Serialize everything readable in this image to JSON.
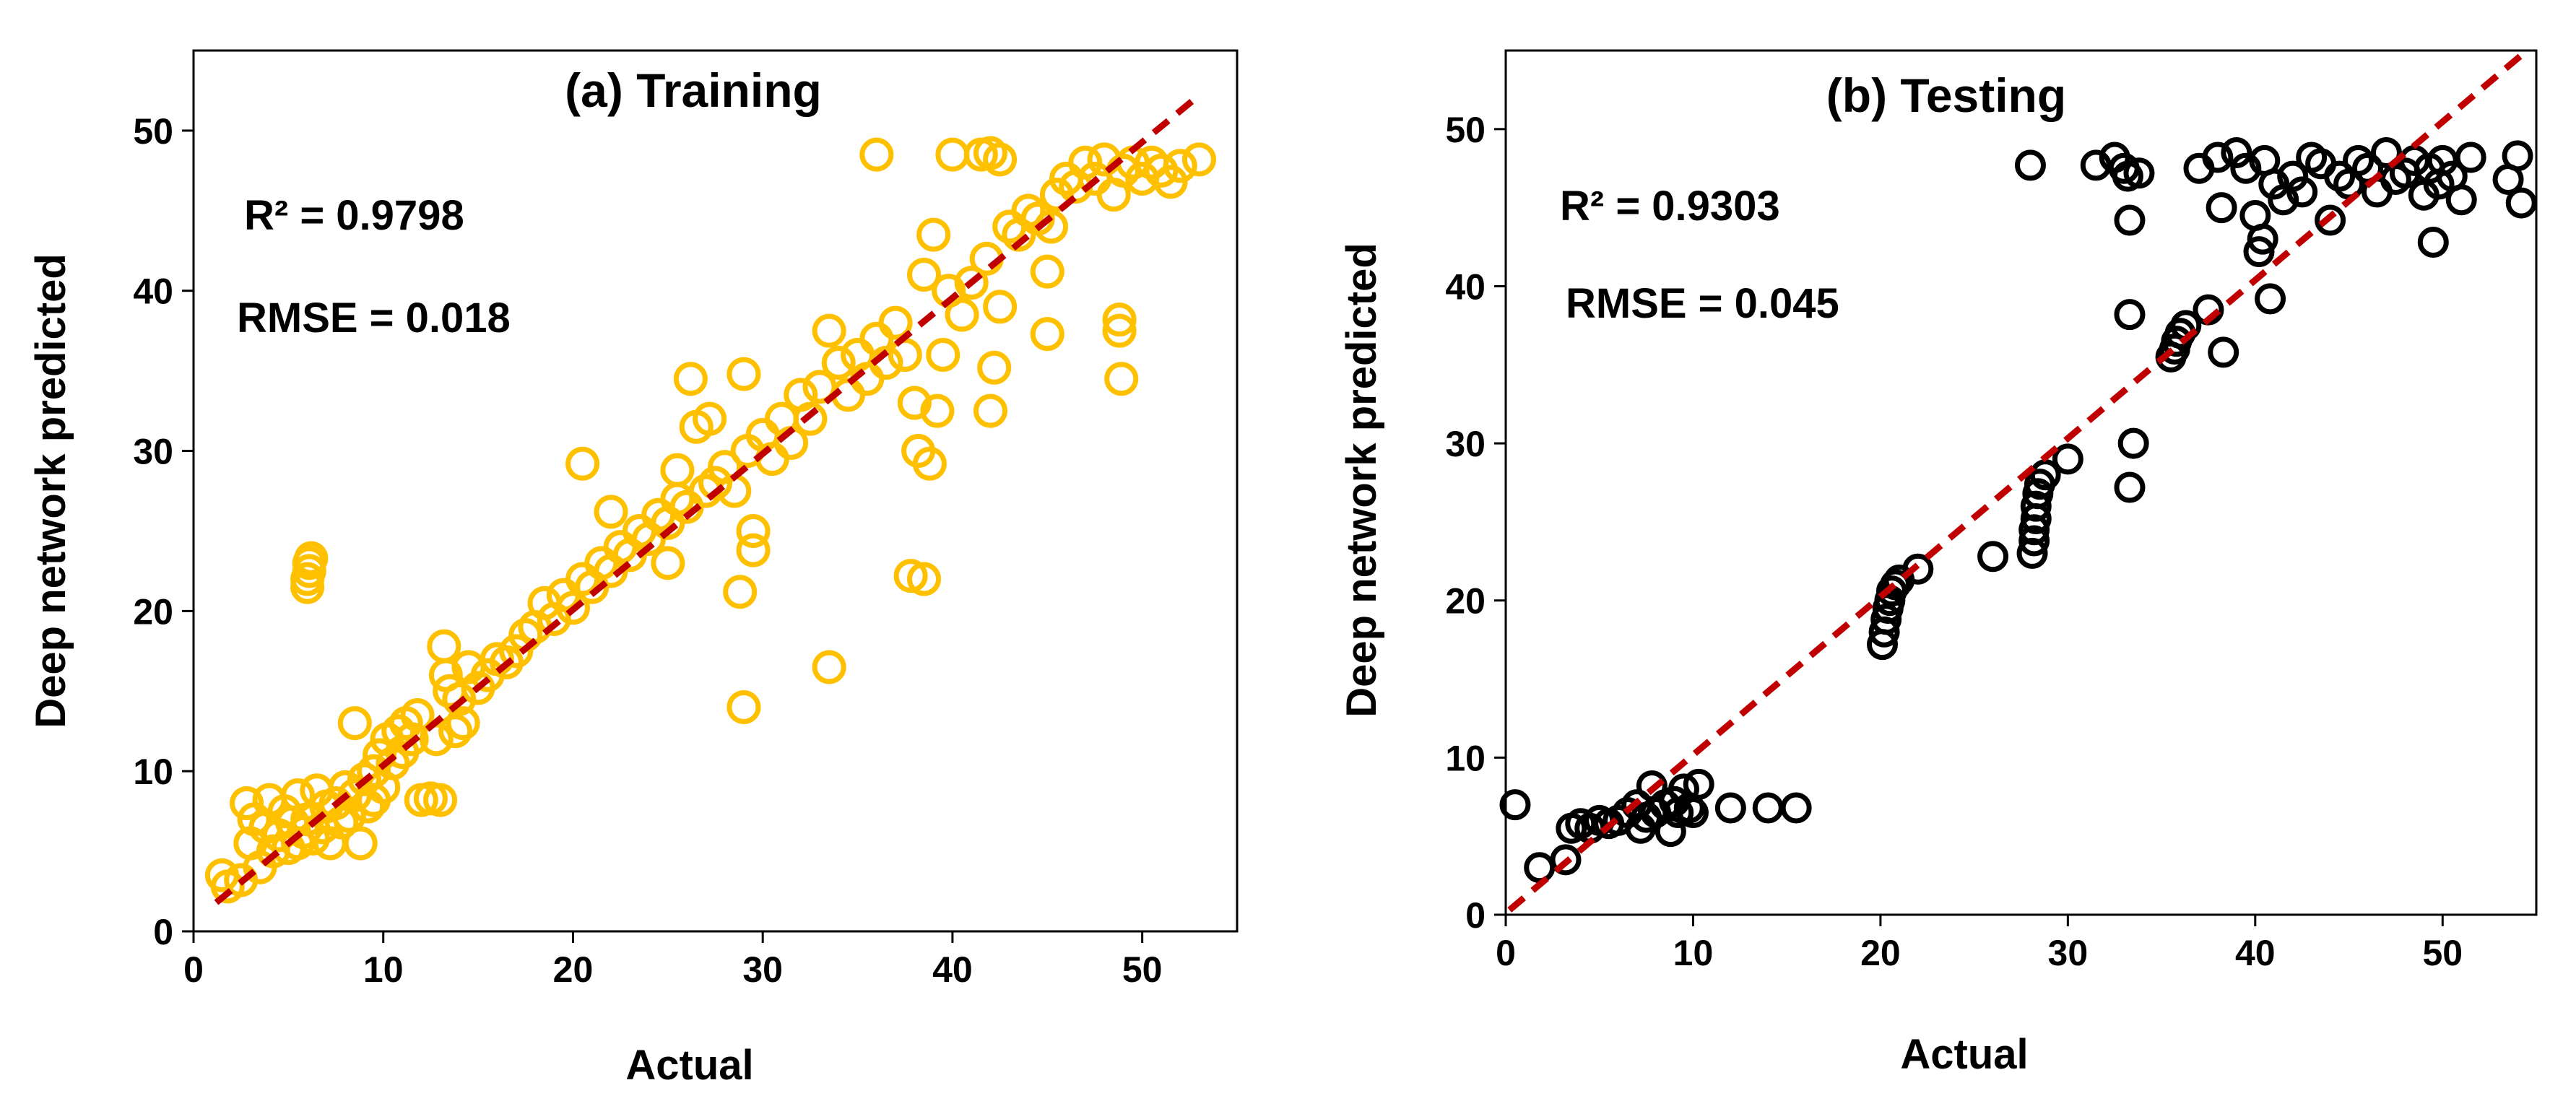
{
  "chart_data": [
    {
      "type": "scatter",
      "title": "(a) Training",
      "xlabel": "Actual",
      "ylabel": "Deep network predicted",
      "xlim": [
        0,
        55
      ],
      "ylim": [
        0,
        55
      ],
      "xticks": [
        0,
        10,
        20,
        30,
        40,
        50
      ],
      "yticks": [
        0,
        10,
        20,
        30,
        40,
        50
      ],
      "annotations": [
        "R² = 0.9798",
        "RMSE = 0.018"
      ],
      "marker_color": "#FFC000",
      "fit_line": {
        "style": "dashed",
        "color": "#C00000",
        "x": [
          1.2,
          53
        ],
        "y": [
          1.8,
          52.2
        ]
      },
      "series": [
        {
          "name": "Training",
          "points": [
            [
              1.5,
              3.5
            ],
            [
              1.8,
              2.8
            ],
            [
              2.5,
              3.2
            ],
            [
              2.8,
              8.0
            ],
            [
              3.0,
              5.5
            ],
            [
              3.2,
              7.0
            ],
            [
              3.5,
              4.0
            ],
            [
              3.8,
              6.5
            ],
            [
              4.0,
              8.2
            ],
            [
              4.2,
              5.0
            ],
            [
              4.5,
              6.0
            ],
            [
              4.8,
              7.5
            ],
            [
              5.0,
              5.2
            ],
            [
              5.2,
              6.8
            ],
            [
              5.5,
              8.5
            ],
            [
              5.5,
              5.5
            ],
            [
              5.8,
              6.2
            ],
            [
              6.0,
              7.0
            ],
            [
              6.0,
              21.5
            ],
            [
              6.0,
              22.0
            ],
            [
              6.1,
              22.5
            ],
            [
              6.1,
              23.0
            ],
            [
              6.2,
              23.3
            ],
            [
              6.3,
              5.8
            ],
            [
              6.5,
              8.8
            ],
            [
              6.8,
              6.5
            ],
            [
              7.0,
              7.8
            ],
            [
              7.2,
              5.5
            ],
            [
              7.5,
              8.0
            ],
            [
              7.8,
              6.8
            ],
            [
              8.0,
              9.0
            ],
            [
              8.2,
              7.2
            ],
            [
              8.5,
              13.0
            ],
            [
              8.5,
              8.5
            ],
            [
              8.8,
              5.5
            ],
            [
              9.0,
              9.5
            ],
            [
              9.2,
              7.8
            ],
            [
              9.5,
              10.0
            ],
            [
              9.5,
              8.2
            ],
            [
              9.8,
              11.0
            ],
            [
              10.0,
              9.0
            ],
            [
              10.2,
              12.0
            ],
            [
              10.5,
              10.5
            ],
            [
              10.8,
              12.5
            ],
            [
              11.0,
              11.2
            ],
            [
              11.2,
              13.0
            ],
            [
              11.5,
              12.0
            ],
            [
              11.8,
              13.5
            ],
            [
              12.0,
              8.2
            ],
            [
              12.5,
              8.3
            ],
            [
              12.8,
              12.0
            ],
            [
              13.0,
              8.2
            ],
            [
              13.2,
              17.8
            ],
            [
              13.3,
              16.0
            ],
            [
              13.5,
              15.0
            ],
            [
              13.8,
              12.5
            ],
            [
              14.0,
              14.5
            ],
            [
              14.2,
              13.0
            ],
            [
              14.5,
              16.5
            ],
            [
              15.0,
              15.2
            ],
            [
              15.5,
              16.0
            ],
            [
              16.0,
              17.0
            ],
            [
              16.5,
              16.8
            ],
            [
              17.0,
              17.5
            ],
            [
              17.5,
              18.5
            ],
            [
              18.0,
              19.0
            ],
            [
              18.5,
              20.5
            ],
            [
              19.0,
              19.5
            ],
            [
              19.5,
              21.0
            ],
            [
              20.0,
              20.2
            ],
            [
              20.5,
              22.0
            ],
            [
              20.5,
              29.2
            ],
            [
              21.0,
              21.5
            ],
            [
              21.5,
              23.0
            ],
            [
              22.0,
              22.5
            ],
            [
              22.0,
              26.2
            ],
            [
              22.5,
              24.0
            ],
            [
              23.0,
              23.5
            ],
            [
              23.5,
              25.0
            ],
            [
              24.0,
              24.5
            ],
            [
              24.5,
              26.0
            ],
            [
              25.0,
              25.5
            ],
            [
              25.0,
              23.0
            ],
            [
              25.5,
              27.0
            ],
            [
              25.5,
              28.8
            ],
            [
              26.0,
              26.5
            ],
            [
              26.2,
              34.5
            ],
            [
              26.5,
              31.5
            ],
            [
              27.0,
              27.5
            ],
            [
              27.2,
              32.0
            ],
            [
              27.5,
              28.0
            ],
            [
              28.0,
              29.0
            ],
            [
              28.5,
              27.5
            ],
            [
              28.8,
              21.2
            ],
            [
              29.0,
              14.0
            ],
            [
              29.0,
              34.8
            ],
            [
              29.2,
              30.0
            ],
            [
              29.5,
              25.0
            ],
            [
              29.5,
              23.8
            ],
            [
              30.0,
              31.0
            ],
            [
              30.5,
              29.5
            ],
            [
              31.0,
              32.0
            ],
            [
              31.5,
              30.5
            ],
            [
              32.0,
              33.5
            ],
            [
              32.5,
              32.0
            ],
            [
              33.0,
              34.0
            ],
            [
              33.5,
              37.5
            ],
            [
              33.5,
              16.5
            ],
            [
              34.0,
              35.5
            ],
            [
              34.5,
              33.5
            ],
            [
              35.0,
              36.0
            ],
            [
              35.5,
              34.5
            ],
            [
              36.0,
              37.0
            ],
            [
              36.0,
              48.5
            ],
            [
              36.5,
              35.5
            ],
            [
              37.0,
              38.0
            ],
            [
              37.5,
              36.0
            ],
            [
              37.8,
              22.2
            ],
            [
              38.0,
              33.0
            ],
            [
              38.2,
              30.0
            ],
            [
              38.5,
              22.0
            ],
            [
              38.5,
              41.0
            ],
            [
              38.8,
              29.2
            ],
            [
              39.0,
              43.5
            ],
            [
              39.2,
              32.5
            ],
            [
              39.5,
              36.0
            ],
            [
              39.8,
              40.0
            ],
            [
              40.0,
              48.5
            ],
            [
              40.5,
              38.5
            ],
            [
              41.0,
              40.5
            ],
            [
              41.5,
              48.5
            ],
            [
              41.8,
              42.0
            ],
            [
              42.0,
              48.6
            ],
            [
              42.0,
              32.5
            ],
            [
              42.2,
              35.2
            ],
            [
              42.5,
              39.0
            ],
            [
              42.5,
              48.2
            ],
            [
              43.0,
              44.0
            ],
            [
              43.5,
              43.5
            ],
            [
              44.0,
              45.0
            ],
            [
              44.5,
              44.5
            ],
            [
              45.0,
              37.3
            ],
            [
              45.0,
              41.2
            ],
            [
              45.2,
              44.0
            ],
            [
              45.5,
              46.0
            ],
            [
              46.0,
              47.0
            ],
            [
              46.5,
              46.5
            ],
            [
              47.0,
              48.0
            ],
            [
              47.5,
              47.0
            ],
            [
              48.0,
              48.2
            ],
            [
              48.5,
              46.0
            ],
            [
              48.8,
              38.2
            ],
            [
              48.8,
              37.5
            ],
            [
              48.9,
              34.5
            ],
            [
              49.0,
              47.5
            ],
            [
              49.5,
              48.0
            ],
            [
              50.0,
              47.0
            ],
            [
              50.5,
              48.0
            ],
            [
              51.0,
              47.5
            ],
            [
              51.5,
              46.8
            ],
            [
              52.0,
              47.8
            ],
            [
              53.0,
              48.2
            ]
          ]
        }
      ]
    },
    {
      "type": "scatter",
      "title": "(b) Testing",
      "xlabel": "Actual",
      "ylabel": "Deep network predicted",
      "xlim": [
        0,
        55
      ],
      "ylim": [
        0,
        55
      ],
      "xticks": [
        0,
        10,
        20,
        30,
        40,
        50
      ],
      "yticks": [
        0,
        10,
        20,
        30,
        40,
        50
      ],
      "annotations": [
        "R² = 0.9303",
        "RMSE = 0.045"
      ],
      "marker_color": "#000000",
      "fit_line": {
        "style": "dashed",
        "color": "#C00000",
        "x": [
          0.2,
          54.5
        ],
        "y": [
          0.3,
          55
        ]
      },
      "series": [
        {
          "name": "Testing",
          "points": [
            [
              0.5,
              7.0
            ],
            [
              1.8,
              3.0
            ],
            [
              3.2,
              3.5
            ],
            [
              3.5,
              5.5
            ],
            [
              4.0,
              5.8
            ],
            [
              4.5,
              5.5
            ],
            [
              5.0,
              6.0
            ],
            [
              5.5,
              5.8
            ],
            [
              6.0,
              6.0
            ],
            [
              6.5,
              6.5
            ],
            [
              7.0,
              7.0
            ],
            [
              7.2,
              5.5
            ],
            [
              7.5,
              6.2
            ],
            [
              7.8,
              8.2
            ],
            [
              8.0,
              6.5
            ],
            [
              8.5,
              7.0
            ],
            [
              8.8,
              5.3
            ],
            [
              9.0,
              7.2
            ],
            [
              9.2,
              6.5
            ],
            [
              9.5,
              8.0
            ],
            [
              9.8,
              6.8
            ],
            [
              10.0,
              6.5
            ],
            [
              10.3,
              8.3
            ],
            [
              12.0,
              6.8
            ],
            [
              14.0,
              6.8
            ],
            [
              15.5,
              6.8
            ],
            [
              20.1,
              17.2
            ],
            [
              20.2,
              18.0
            ],
            [
              20.3,
              18.8
            ],
            [
              20.4,
              19.5
            ],
            [
              20.5,
              20.0
            ],
            [
              20.6,
              20.6
            ],
            [
              20.8,
              21.0
            ],
            [
              21.0,
              21.3
            ],
            [
              22.0,
              22.0
            ],
            [
              26.0,
              22.8
            ],
            [
              28.0,
              47.7
            ],
            [
              28.1,
              23.0
            ],
            [
              28.2,
              23.8
            ],
            [
              28.2,
              24.5
            ],
            [
              28.3,
              25.2
            ],
            [
              28.3,
              26.0
            ],
            [
              28.4,
              26.8
            ],
            [
              28.5,
              27.4
            ],
            [
              28.8,
              28.0
            ],
            [
              30.0,
              29.0
            ],
            [
              31.5,
              47.7
            ],
            [
              32.5,
              48.2
            ],
            [
              33.0,
              47.5
            ],
            [
              33.2,
              47.0
            ],
            [
              33.3,
              44.2
            ],
            [
              33.3,
              38.2
            ],
            [
              33.3,
              27.2
            ],
            [
              33.5,
              30.0
            ],
            [
              33.8,
              47.2
            ],
            [
              35.5,
              35.5
            ],
            [
              35.7,
              36.0
            ],
            [
              35.8,
              36.5
            ],
            [
              36.0,
              37.0
            ],
            [
              36.3,
              37.5
            ],
            [
              37.0,
              47.5
            ],
            [
              37.5,
              38.5
            ],
            [
              38.0,
              48.2
            ],
            [
              38.2,
              45.0
            ],
            [
              38.3,
              35.8
            ],
            [
              39.0,
              48.5
            ],
            [
              39.5,
              47.5
            ],
            [
              40.0,
              44.5
            ],
            [
              40.2,
              42.2
            ],
            [
              40.4,
              43.0
            ],
            [
              40.5,
              48.0
            ],
            [
              40.8,
              39.2
            ],
            [
              41.0,
              46.5
            ],
            [
              41.5,
              45.5
            ],
            [
              42.0,
              47.0
            ],
            [
              42.5,
              46.0
            ],
            [
              43.0,
              48.2
            ],
            [
              43.5,
              47.8
            ],
            [
              44.0,
              44.2
            ],
            [
              44.5,
              47.0
            ],
            [
              45.0,
              46.5
            ],
            [
              45.5,
              48.0
            ],
            [
              46.0,
              47.5
            ],
            [
              46.5,
              46.0
            ],
            [
              47.0,
              48.5
            ],
            [
              47.5,
              46.8
            ],
            [
              48.0,
              47.2
            ],
            [
              48.5,
              48.0
            ],
            [
              49.0,
              45.8
            ],
            [
              49.3,
              47.5
            ],
            [
              49.5,
              42.8
            ],
            [
              49.8,
              46.5
            ],
            [
              50.0,
              48.0
            ],
            [
              50.5,
              47.0
            ],
            [
              51.0,
              45.5
            ],
            [
              51.5,
              48.2
            ],
            [
              53.5,
              46.8
            ],
            [
              54.0,
              48.3
            ],
            [
              54.2,
              45.3
            ]
          ]
        }
      ]
    }
  ]
}
